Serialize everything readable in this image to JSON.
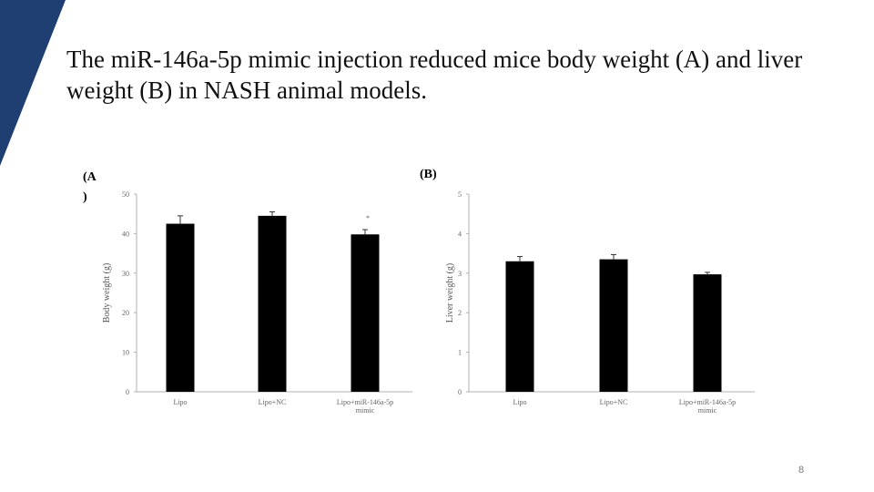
{
  "title": "The miR-146a-5p mimic injection reduced mice body weight (A) and liver weight  (B) in NASH animal models.",
  "page_number": "8",
  "colors": {
    "accent": "#1f3f73",
    "bar": "#000000",
    "axis": "#b0b0b0"
  },
  "panels": {
    "a_label": "(A\n)",
    "b_label": "(B)"
  },
  "chart_data": [
    {
      "type": "bar",
      "panel": "(A)",
      "categories": [
        "Lipo",
        "Lipo+NC",
        "Lipo+miR-146a-5p\nmimic"
      ],
      "values": [
        42.5,
        44.5,
        39.8
      ],
      "errors": [
        2.0,
        1.0,
        1.2
      ],
      "annotations": [
        "",
        "",
        "*"
      ],
      "ylabel": "Body weight  (g)",
      "ylim": [
        0,
        50
      ],
      "yticks": [
        "0",
        "10",
        "20",
        "30",
        "40",
        "50"
      ]
    },
    {
      "type": "bar",
      "panel": "(B)",
      "categories": [
        "Lipo",
        "Lipo+NC",
        "Lipo+miR-146a-5p\nmimic"
      ],
      "values": [
        3.3,
        3.35,
        2.97
      ],
      "errors": [
        0.12,
        0.12,
        0.05
      ],
      "annotations": [
        "",
        "",
        ""
      ],
      "ylabel": "Liver weight  (g)",
      "ylim": [
        0,
        5
      ],
      "yticks": [
        "0",
        "1",
        "2",
        "3",
        "4",
        "5"
      ]
    }
  ]
}
